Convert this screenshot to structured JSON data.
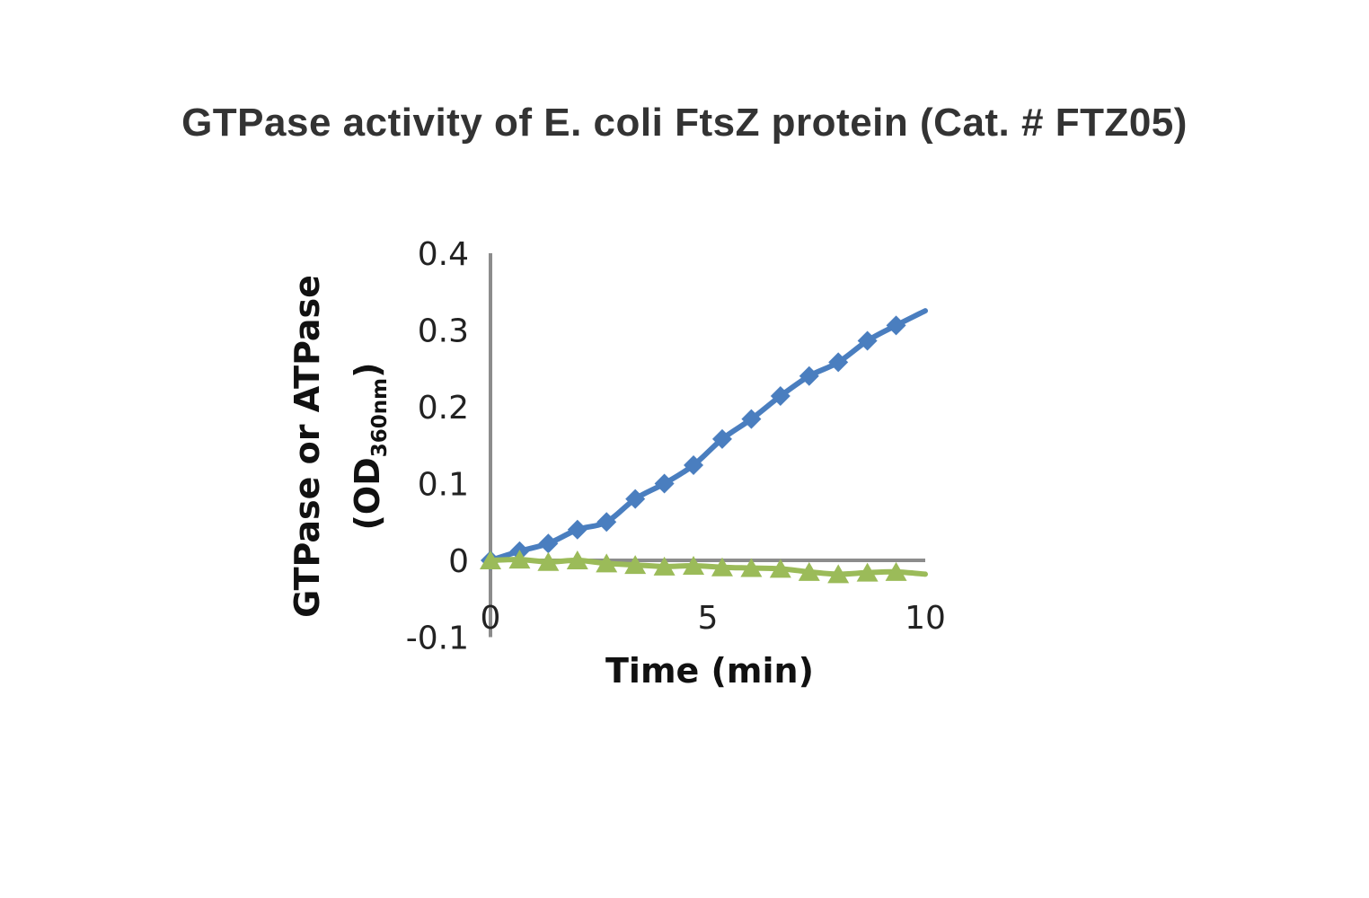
{
  "chart_data": {
    "type": "line",
    "title": "GTPase activity of E. coli FtsZ protein (Cat. # FTZ05)",
    "xlabel": "Time (min)",
    "ylabel_main": "GTPase or ATPase",
    "ylabel_unit_prefix": "(OD",
    "ylabel_unit_sub": "360nm",
    "ylabel_unit_suffix": ")",
    "xlim": [
      0,
      10
    ],
    "ylim": [
      -0.1,
      0.4
    ],
    "x_ticks": [
      "0",
      "5",
      "10"
    ],
    "y_ticks": [
      "0.4",
      "0.3",
      "0.2",
      "0.1",
      "0",
      "-0.1"
    ],
    "series": [
      {
        "name": "GTPase",
        "color": "#4a7ebf",
        "marker": "diamond",
        "x": [
          0,
          0.67,
          1.33,
          2.0,
          2.67,
          3.33,
          4.0,
          4.67,
          5.33,
          6.0,
          6.67,
          7.33,
          8.0,
          8.67,
          9.33
        ],
        "y": [
          0.0,
          0.012,
          0.022,
          0.04,
          0.05,
          0.08,
          0.1,
          0.124,
          0.158,
          0.184,
          0.214,
          0.24,
          0.258,
          0.286,
          0.306
        ],
        "end_point": [
          10.0,
          0.325
        ]
      },
      {
        "name": "ATPase",
        "color": "#9bbb59",
        "marker": "triangle",
        "x": [
          0,
          0.67,
          1.33,
          2.0,
          2.67,
          3.33,
          4.0,
          4.67,
          5.33,
          6.0,
          6.67,
          7.33,
          8.0,
          8.67,
          9.33
        ],
        "y": [
          0.0,
          0.001,
          -0.002,
          0.0,
          -0.004,
          -0.006,
          -0.008,
          -0.007,
          -0.009,
          -0.01,
          -0.011,
          -0.015,
          -0.018,
          -0.016,
          -0.015
        ],
        "end_point": [
          10.0,
          -0.018
        ]
      }
    ]
  }
}
